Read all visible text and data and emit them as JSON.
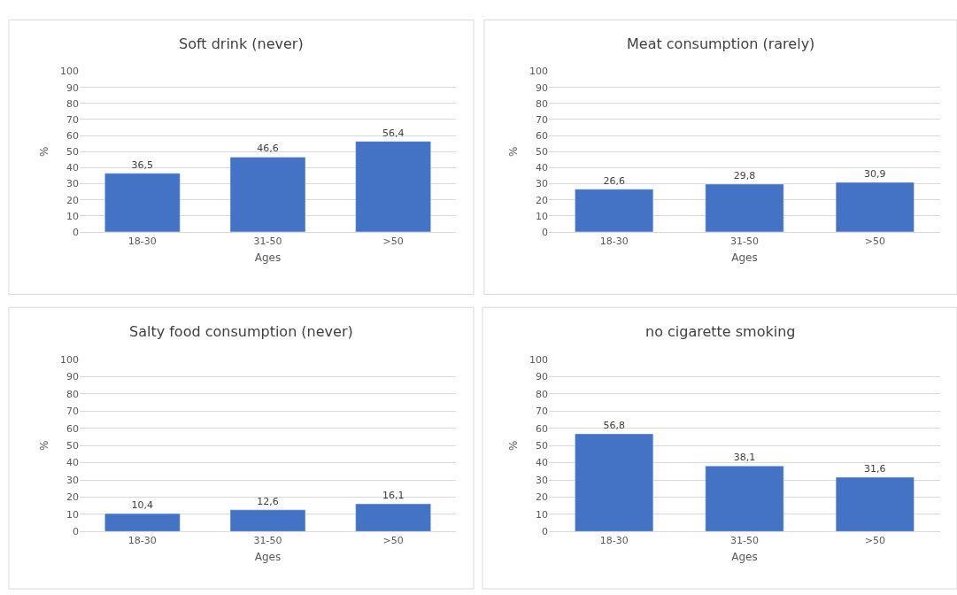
{
  "chart_data": [
    {
      "type": "bar",
      "title": "Soft drink (never)",
      "xlabel": "Ages",
      "ylabel": "%",
      "categories": [
        "18-30",
        "31-50",
        ">50"
      ],
      "values": [
        36.5,
        46.6,
        56.4
      ],
      "value_labels": [
        "36,5",
        "46,6",
        "56,4"
      ],
      "color": "#4472c4",
      "ylim": [
        0,
        100
      ],
      "yticks": [
        0,
        10,
        20,
        30,
        40,
        50,
        60,
        70,
        80,
        90,
        100
      ],
      "grid": "y",
      "legend": false
    },
    {
      "type": "bar",
      "title": "Meat consumption (rarely)",
      "xlabel": "Ages",
      "ylabel": "%",
      "categories": [
        "18-30",
        "31-50",
        ">50"
      ],
      "values": [
        26.6,
        29.8,
        30.9
      ],
      "value_labels": [
        "26,6",
        "29,8",
        "30,9"
      ],
      "color": "#4472c4",
      "ylim": [
        0,
        100
      ],
      "yticks": [
        0,
        10,
        20,
        30,
        40,
        50,
        60,
        70,
        80,
        90,
        100
      ],
      "grid": "y",
      "legend": false
    },
    {
      "type": "bar",
      "title": "Salty food consumption (never)",
      "xlabel": "Ages",
      "ylabel": "%",
      "categories": [
        "18-30",
        "31-50",
        ">50"
      ],
      "values": [
        10.4,
        12.6,
        16.1
      ],
      "value_labels": [
        "10,4",
        "12,6",
        "16,1"
      ],
      "color": "#4472c4",
      "ylim": [
        0,
        100
      ],
      "yticks": [
        0,
        10,
        20,
        30,
        40,
        50,
        60,
        70,
        80,
        90,
        100
      ],
      "grid": "y",
      "legend": false
    },
    {
      "type": "bar",
      "title": "no cigarette smoking",
      "xlabel": "Ages",
      "ylabel": "%",
      "categories": [
        "18-30",
        "31-50",
        ">50"
      ],
      "values": [
        56.8,
        38.1,
        31.6
      ],
      "value_labels": [
        "56,8",
        "38,1",
        "31,6"
      ],
      "color": "#4472c4",
      "ylim": [
        0,
        100
      ],
      "yticks": [
        0,
        10,
        20,
        30,
        40,
        50,
        60,
        70,
        80,
        90,
        100
      ],
      "grid": "y",
      "legend": false
    }
  ]
}
